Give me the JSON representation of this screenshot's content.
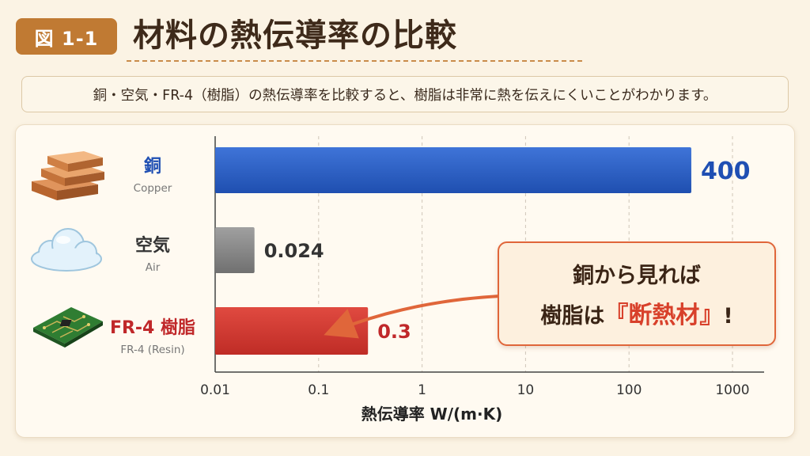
{
  "header": {
    "figure_label": "図 1-1",
    "title": "材料の熱伝導率の比較"
  },
  "caption": "銅・空気・FR-4（樹脂）の熱伝導率を比較すると、樹脂は非常に熱を伝えにくいことがわかります。",
  "rows": [
    {
      "label_jp": "銅",
      "label_en": "Copper",
      "icon": "copper-ingots-icon",
      "color": "#1f4fb3"
    },
    {
      "label_jp": "空気",
      "label_en": "Air",
      "icon": "cloud-icon",
      "color": "#333333"
    },
    {
      "label_jp": "FR-4 樹脂",
      "label_en": "FR-4 (Resin)",
      "icon": "circuit-board-icon",
      "color": "#c0282a"
    }
  ],
  "callout": {
    "line1": "銅から見れば",
    "line2_prefix": "樹脂は",
    "line2_highlight": "『断熱材』",
    "line2_suffix": "!"
  },
  "colors": {
    "copper_bar": "#2f63c9",
    "air_bar": "#8a8a8a",
    "resin_bar": "#d63a32",
    "accent": "#e0663a"
  },
  "chart_data": {
    "type": "bar",
    "orientation": "horizontal",
    "x_scale": "log",
    "categories": [
      "銅",
      "空気",
      "FR-4 樹脂"
    ],
    "values": [
      400,
      0.024,
      0.3
    ],
    "value_labels": [
      "400",
      "0.024",
      "0.3"
    ],
    "xlim": [
      0.01,
      1000
    ],
    "xticks": [
      "0.01",
      "0.1",
      "1",
      "10",
      "100",
      "1000"
    ],
    "xlabel": "熱伝導率 W/(m·K)",
    "grid": "vertical dashed"
  }
}
